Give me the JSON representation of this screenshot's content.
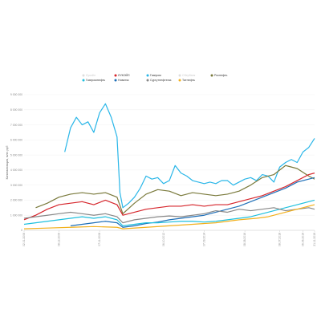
{
  "chart_data": {
    "type": "line",
    "ylabel": "Капитализация, млн. руб",
    "ylim": [
      0,
      9000000
    ],
    "y_ticks": [
      "0",
      "1 000 000",
      "2 000 000",
      "3 000 000",
      "4 000 000",
      "5 000 000",
      "6 000 000",
      "7 000 000",
      "8 000 000",
      "9 000 000"
    ],
    "x_ticks": [
      "02.01.2006",
      "08.12.2006",
      "07.11.2008",
      "06.10.2012",
      "07.09.2014",
      "08.08.2016",
      "08.07.2018",
      "06.06.2019",
      "21.11.2019"
    ],
    "grid": true,
    "legend_position": "top",
    "legend": [
      {
        "name": "Лукойл",
        "color": "#f4b6c2",
        "active": false
      },
      {
        "name": "ЛУКОЙЛ",
        "color": "#d6262c",
        "active": true
      },
      {
        "name": "Газпром",
        "color": "#29b6e8",
        "active": true
      },
      {
        "name": "Сбербанк",
        "color": "#9fd8ef",
        "active": false
      },
      {
        "name": "Роснефть",
        "color": "#7a7a3c",
        "active": true
      },
      {
        "name": "Газпромнефть",
        "color": "#1fc0de",
        "active": true
      },
      {
        "name": "Новатэк",
        "color": "#1e6fb8",
        "active": true
      },
      {
        "name": "Сургутнефтегаз",
        "color": "#888888",
        "active": true
      },
      {
        "name": "Татнефть",
        "color": "#f2b01c",
        "active": true
      }
    ],
    "series": [
      {
        "name": "Газпром",
        "color": "#29b6e8",
        "x": [
          0.14,
          0.16,
          0.18,
          0.2,
          0.22,
          0.24,
          0.26,
          0.28,
          0.3,
          0.32,
          0.33,
          0.34,
          0.36,
          0.38,
          0.4,
          0.42,
          0.44,
          0.46,
          0.48,
          0.5,
          0.52,
          0.54,
          0.56,
          0.58,
          0.6,
          0.62,
          0.64,
          0.66,
          0.68,
          0.7,
          0.72,
          0.74,
          0.76,
          0.78,
          0.8,
          0.82,
          0.84,
          0.86,
          0.88,
          0.9,
          0.92,
          0.94,
          0.96,
          0.98,
          1.0
        ],
        "values": [
          5200000,
          6800000,
          7500000,
          7000000,
          7200000,
          6500000,
          7800000,
          8400000,
          7500000,
          6200000,
          2500000,
          1500000,
          1800000,
          2200000,
          2800000,
          3600000,
          3400000,
          3500000,
          3100000,
          3300000,
          4300000,
          3800000,
          3600000,
          3300000,
          3200000,
          3100000,
          3200000,
          3100000,
          3300000,
          3300000,
          3000000,
          3200000,
          3400000,
          3500000,
          3300000,
          3700000,
          3600000,
          3200000,
          4200000,
          4500000,
          4700000,
          4500000,
          5200000,
          5500000,
          6100000
        ]
      },
      {
        "name": "Роснефть",
        "color": "#7a7a3c",
        "x": [
          0.04,
          0.08,
          0.12,
          0.16,
          0.2,
          0.24,
          0.28,
          0.32,
          0.34,
          0.38,
          0.42,
          0.46,
          0.5,
          0.54,
          0.58,
          0.62,
          0.66,
          0.7,
          0.74,
          0.78,
          0.82,
          0.86,
          0.9,
          0.94,
          0.98,
          1.0
        ],
        "values": [
          1500000,
          1800000,
          2200000,
          2400000,
          2500000,
          2400000,
          2500000,
          2200000,
          1100000,
          1800000,
          2400000,
          2700000,
          2600000,
          2300000,
          2500000,
          2400000,
          2300000,
          2400000,
          2600000,
          3000000,
          3500000,
          3700000,
          4300000,
          4100000,
          3600000,
          3400000
        ]
      },
      {
        "name": "ЛУКОЙЛ",
        "color": "#d6262c",
        "x": [
          0.0,
          0.04,
          0.08,
          0.12,
          0.16,
          0.2,
          0.24,
          0.28,
          0.32,
          0.34,
          0.38,
          0.42,
          0.46,
          0.5,
          0.54,
          0.58,
          0.62,
          0.66,
          0.7,
          0.74,
          0.78,
          0.82,
          0.86,
          0.9,
          0.94,
          0.98,
          1.0
        ],
        "values": [
          700000,
          1000000,
          1400000,
          1700000,
          1800000,
          1900000,
          1700000,
          2000000,
          1700000,
          1000000,
          1200000,
          1400000,
          1500000,
          1600000,
          1600000,
          1700000,
          1600000,
          1700000,
          1700000,
          1900000,
          2100000,
          2300000,
          2600000,
          2900000,
          3300000,
          3700000,
          3800000
        ]
      },
      {
        "name": "Новатэк",
        "color": "#1e6fb8",
        "x": [
          0.16,
          0.2,
          0.24,
          0.28,
          0.32,
          0.34,
          0.38,
          0.42,
          0.46,
          0.5,
          0.54,
          0.58,
          0.62,
          0.66,
          0.7,
          0.74,
          0.78,
          0.82,
          0.86,
          0.9,
          0.94,
          0.98,
          1.0
        ],
        "values": [
          300000,
          400000,
          500000,
          600000,
          500000,
          200000,
          300000,
          450000,
          550000,
          700000,
          800000,
          900000,
          1000000,
          1200000,
          1400000,
          1600000,
          1900000,
          2200000,
          2500000,
          2800000,
          3200000,
          3400000,
          3500000
        ]
      },
      {
        "name": "Газпромнефть",
        "color": "#1fc0de",
        "x": [
          0.0,
          0.04,
          0.08,
          0.12,
          0.16,
          0.2,
          0.24,
          0.28,
          0.32,
          0.34,
          0.38,
          0.42,
          0.46,
          0.5,
          0.54,
          0.58,
          0.62,
          0.66,
          0.7,
          0.74,
          0.78,
          0.82,
          0.86,
          0.9,
          0.94,
          0.98,
          1.0
        ],
        "values": [
          400000,
          500000,
          600000,
          700000,
          800000,
          900000,
          800000,
          900000,
          700000,
          300000,
          400000,
          500000,
          500000,
          550000,
          600000,
          600000,
          550000,
          600000,
          700000,
          800000,
          900000,
          1100000,
          1300000,
          1500000,
          1700000,
          1900000,
          2000000
        ]
      },
      {
        "name": "Сургутнефтегаз",
        "color": "#888888",
        "x": [
          0.0,
          0.04,
          0.08,
          0.12,
          0.16,
          0.2,
          0.24,
          0.28,
          0.32,
          0.34,
          0.38,
          0.42,
          0.46,
          0.5,
          0.54,
          0.58,
          0.62,
          0.66,
          0.7,
          0.74,
          0.78,
          0.82,
          0.86,
          0.9,
          0.94,
          0.98,
          1.0
        ],
        "values": [
          800000,
          900000,
          1000000,
          1100000,
          1200000,
          1100000,
          1000000,
          1100000,
          900000,
          500000,
          700000,
          800000,
          900000,
          950000,
          900000,
          1000000,
          1100000,
          1300000,
          1200000,
          1400000,
          1300000,
          1400000,
          1500000,
          1300000,
          1400000,
          1500000,
          1400000
        ]
      },
      {
        "name": "Татнефть",
        "color": "#f2b01c",
        "x": [
          0.0,
          0.08,
          0.16,
          0.24,
          0.32,
          0.34,
          0.42,
          0.5,
          0.58,
          0.66,
          0.74,
          0.8,
          0.84,
          0.88,
          0.92,
          0.96,
          1.0
        ],
        "values": [
          100000,
          150000,
          200000,
          250000,
          200000,
          100000,
          200000,
          300000,
          400000,
          500000,
          700000,
          800000,
          900000,
          1100000,
          1300000,
          1500000,
          1700000
        ]
      }
    ]
  }
}
